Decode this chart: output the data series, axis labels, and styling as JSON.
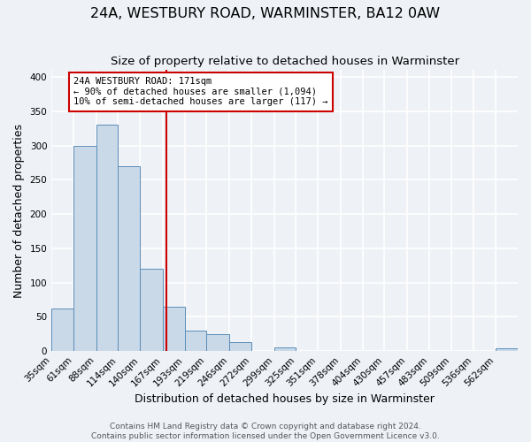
{
  "title": "24A, WESTBURY ROAD, WARMINSTER, BA12 0AW",
  "subtitle": "Size of property relative to detached houses in Warminster",
  "xlabel": "Distribution of detached houses by size in Warminster",
  "ylabel": "Number of detached properties",
  "footer_line1": "Contains HM Land Registry data © Crown copyright and database right 2024.",
  "footer_line2": "Contains public sector information licensed under the Open Government Licence v3.0.",
  "bin_labels": [
    "35sqm",
    "61sqm",
    "88sqm",
    "114sqm",
    "140sqm",
    "167sqm",
    "193sqm",
    "219sqm",
    "246sqm",
    "272sqm",
    "299sqm",
    "325sqm",
    "351sqm",
    "378sqm",
    "404sqm",
    "430sqm",
    "457sqm",
    "483sqm",
    "509sqm",
    "536sqm",
    "562sqm"
  ],
  "bin_edges": [
    35,
    61,
    88,
    114,
    140,
    167,
    193,
    219,
    246,
    272,
    299,
    325,
    351,
    378,
    404,
    430,
    457,
    483,
    509,
    536,
    562,
    588
  ],
  "bar_heights": [
    62,
    300,
    330,
    270,
    120,
    65,
    30,
    25,
    13,
    0,
    5,
    0,
    0,
    0,
    0,
    0,
    0,
    0,
    0,
    0,
    4
  ],
  "bar_color": "#c9d9e8",
  "bar_edge_color": "#5b8db8",
  "property_value": 171,
  "vline_color": "#cc0000",
  "annotation_title": "24A WESTBURY ROAD: 171sqm",
  "annotation_line2": "← 90% of detached houses are smaller (1,094)",
  "annotation_line3": "10% of semi-detached houses are larger (117) →",
  "annotation_box_edge": "#cc0000",
  "annotation_box_facecolor": "#ffffff",
  "ylim": [
    0,
    410
  ],
  "yticks": [
    0,
    50,
    100,
    150,
    200,
    250,
    300,
    350,
    400
  ],
  "background_color": "#eef2f7",
  "grid_color": "#ffffff",
  "title_fontsize": 11.5,
  "subtitle_fontsize": 9.5,
  "axis_label_fontsize": 9,
  "tick_fontsize": 7.5,
  "footer_fontsize": 6.5
}
